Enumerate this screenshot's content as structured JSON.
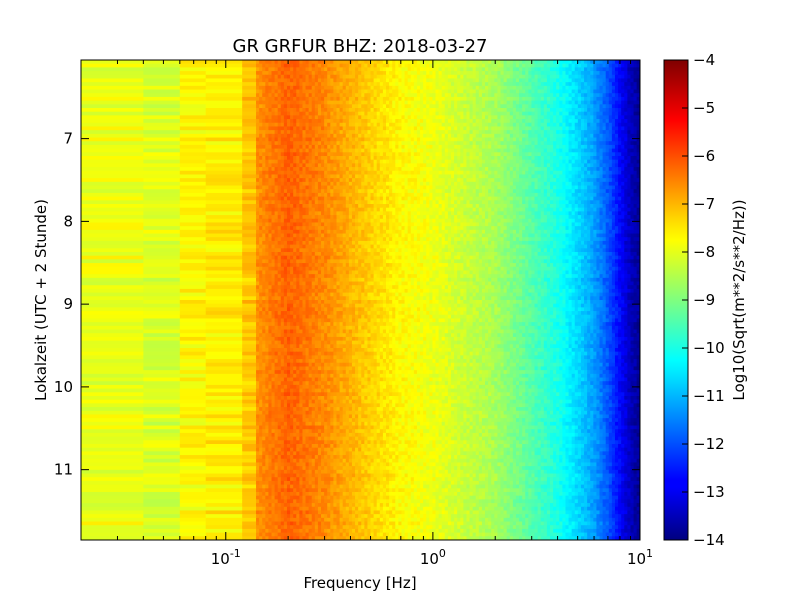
{
  "chart_data": {
    "type": "heatmap",
    "title": "GR GRFUR BHZ: 2018-03-27",
    "xlabel": "Frequency [Hz]",
    "ylabel": "Lokalzeit (UTC + 2 Stunde)",
    "x_scale": "log",
    "xlim": [
      0.02,
      10
    ],
    "ylim": [
      11.85,
      6.05
    ],
    "x_ticks": [
      {
        "value": 0.1,
        "base": "10",
        "exp": "-1"
      },
      {
        "value": 1,
        "base": "10",
        "exp": "0"
      },
      {
        "value": 10,
        "base": "10",
        "exp": "1"
      }
    ],
    "y_ticks": [
      7,
      8,
      9,
      10,
      11
    ],
    "colorbar": {
      "label": "Log10(Sqrt(m**2/s**2/Hz))",
      "colormap": "jet",
      "range": [
        -14,
        -4
      ],
      "ticks": [
        -4,
        -5,
        -6,
        -7,
        -8,
        -9,
        -10,
        -11,
        -12,
        -13,
        -14
      ]
    },
    "spectrum_profile": {
      "frequency_hz": [
        0.02,
        0.04,
        0.06,
        0.08,
        0.12,
        0.14,
        0.2,
        0.3,
        0.5,
        0.7,
        1.0,
        2.0,
        3.0,
        4.0,
        5.0,
        6.0,
        7.0,
        8.0,
        9.0,
        10.0
      ],
      "log10_amplitude": [
        -7.6,
        -8.3,
        -7.9,
        -7.5,
        -7.7,
        -6.7,
        -6.2,
        -6.6,
        -7.3,
        -7.7,
        -7.9,
        -8.6,
        -9.4,
        -10.0,
        -10.6,
        -11.2,
        -11.9,
        -12.7,
        -13.4,
        -13.8
      ]
    },
    "grid": false,
    "legend": "colorbar-right"
  }
}
